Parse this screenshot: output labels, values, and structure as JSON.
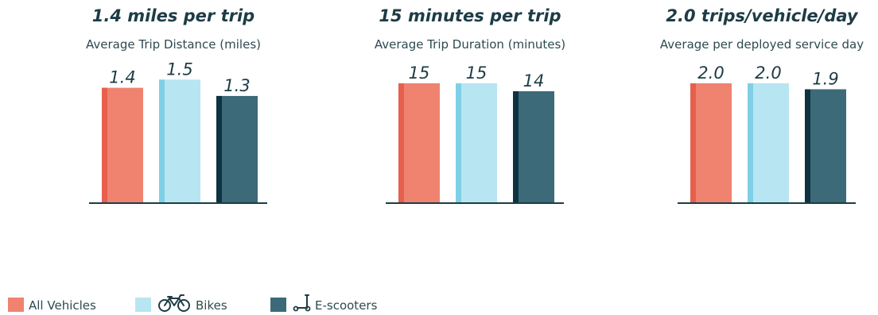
{
  "colors": {
    "all_vehicles": "#ef8370",
    "all_vehicles_edge": "#e6604d",
    "bikes": "#b7e6f2",
    "bikes_edge": "#7fd0e6",
    "escooters": "#3c6a79",
    "escooters_edge": "#0e3340",
    "axis": "#1d3c45"
  },
  "legend": [
    {
      "label": "All Vehicles",
      "icon": "none"
    },
    {
      "label": "Bikes",
      "icon": "bicycle-icon"
    },
    {
      "label": "E-scooters",
      "icon": "scooter-icon"
    }
  ],
  "chart_data": [
    {
      "type": "bar",
      "title": "1.4 miles per trip",
      "subtitle": "Average Trip Distance (miles)",
      "categories": [
        "All Vehicles",
        "Bikes",
        "E-scooters"
      ],
      "values": [
        1.4,
        1.5,
        1.3
      ],
      "labels": [
        "1.4",
        "1.5",
        "1.3"
      ],
      "ylim": [
        0,
        1.6
      ]
    },
    {
      "type": "bar",
      "title": "15 minutes per trip",
      "subtitle": "Average Trip Duration (minutes)",
      "categories": [
        "All Vehicles",
        "Bikes",
        "E-scooters"
      ],
      "values": [
        15,
        15,
        14
      ],
      "labels": [
        "15",
        "15",
        "14"
      ],
      "ylim": [
        0,
        16.5
      ]
    },
    {
      "type": "bar",
      "title": "2.0 trips/vehicle/day",
      "subtitle": "Average per deployed service day",
      "categories": [
        "All Vehicles",
        "Bikes",
        "E-scooters"
      ],
      "values": [
        2.0,
        2.0,
        1.9
      ],
      "labels": [
        "2.0",
        "2.0",
        "1.9"
      ],
      "ylim": [
        0,
        2.2
      ]
    }
  ]
}
